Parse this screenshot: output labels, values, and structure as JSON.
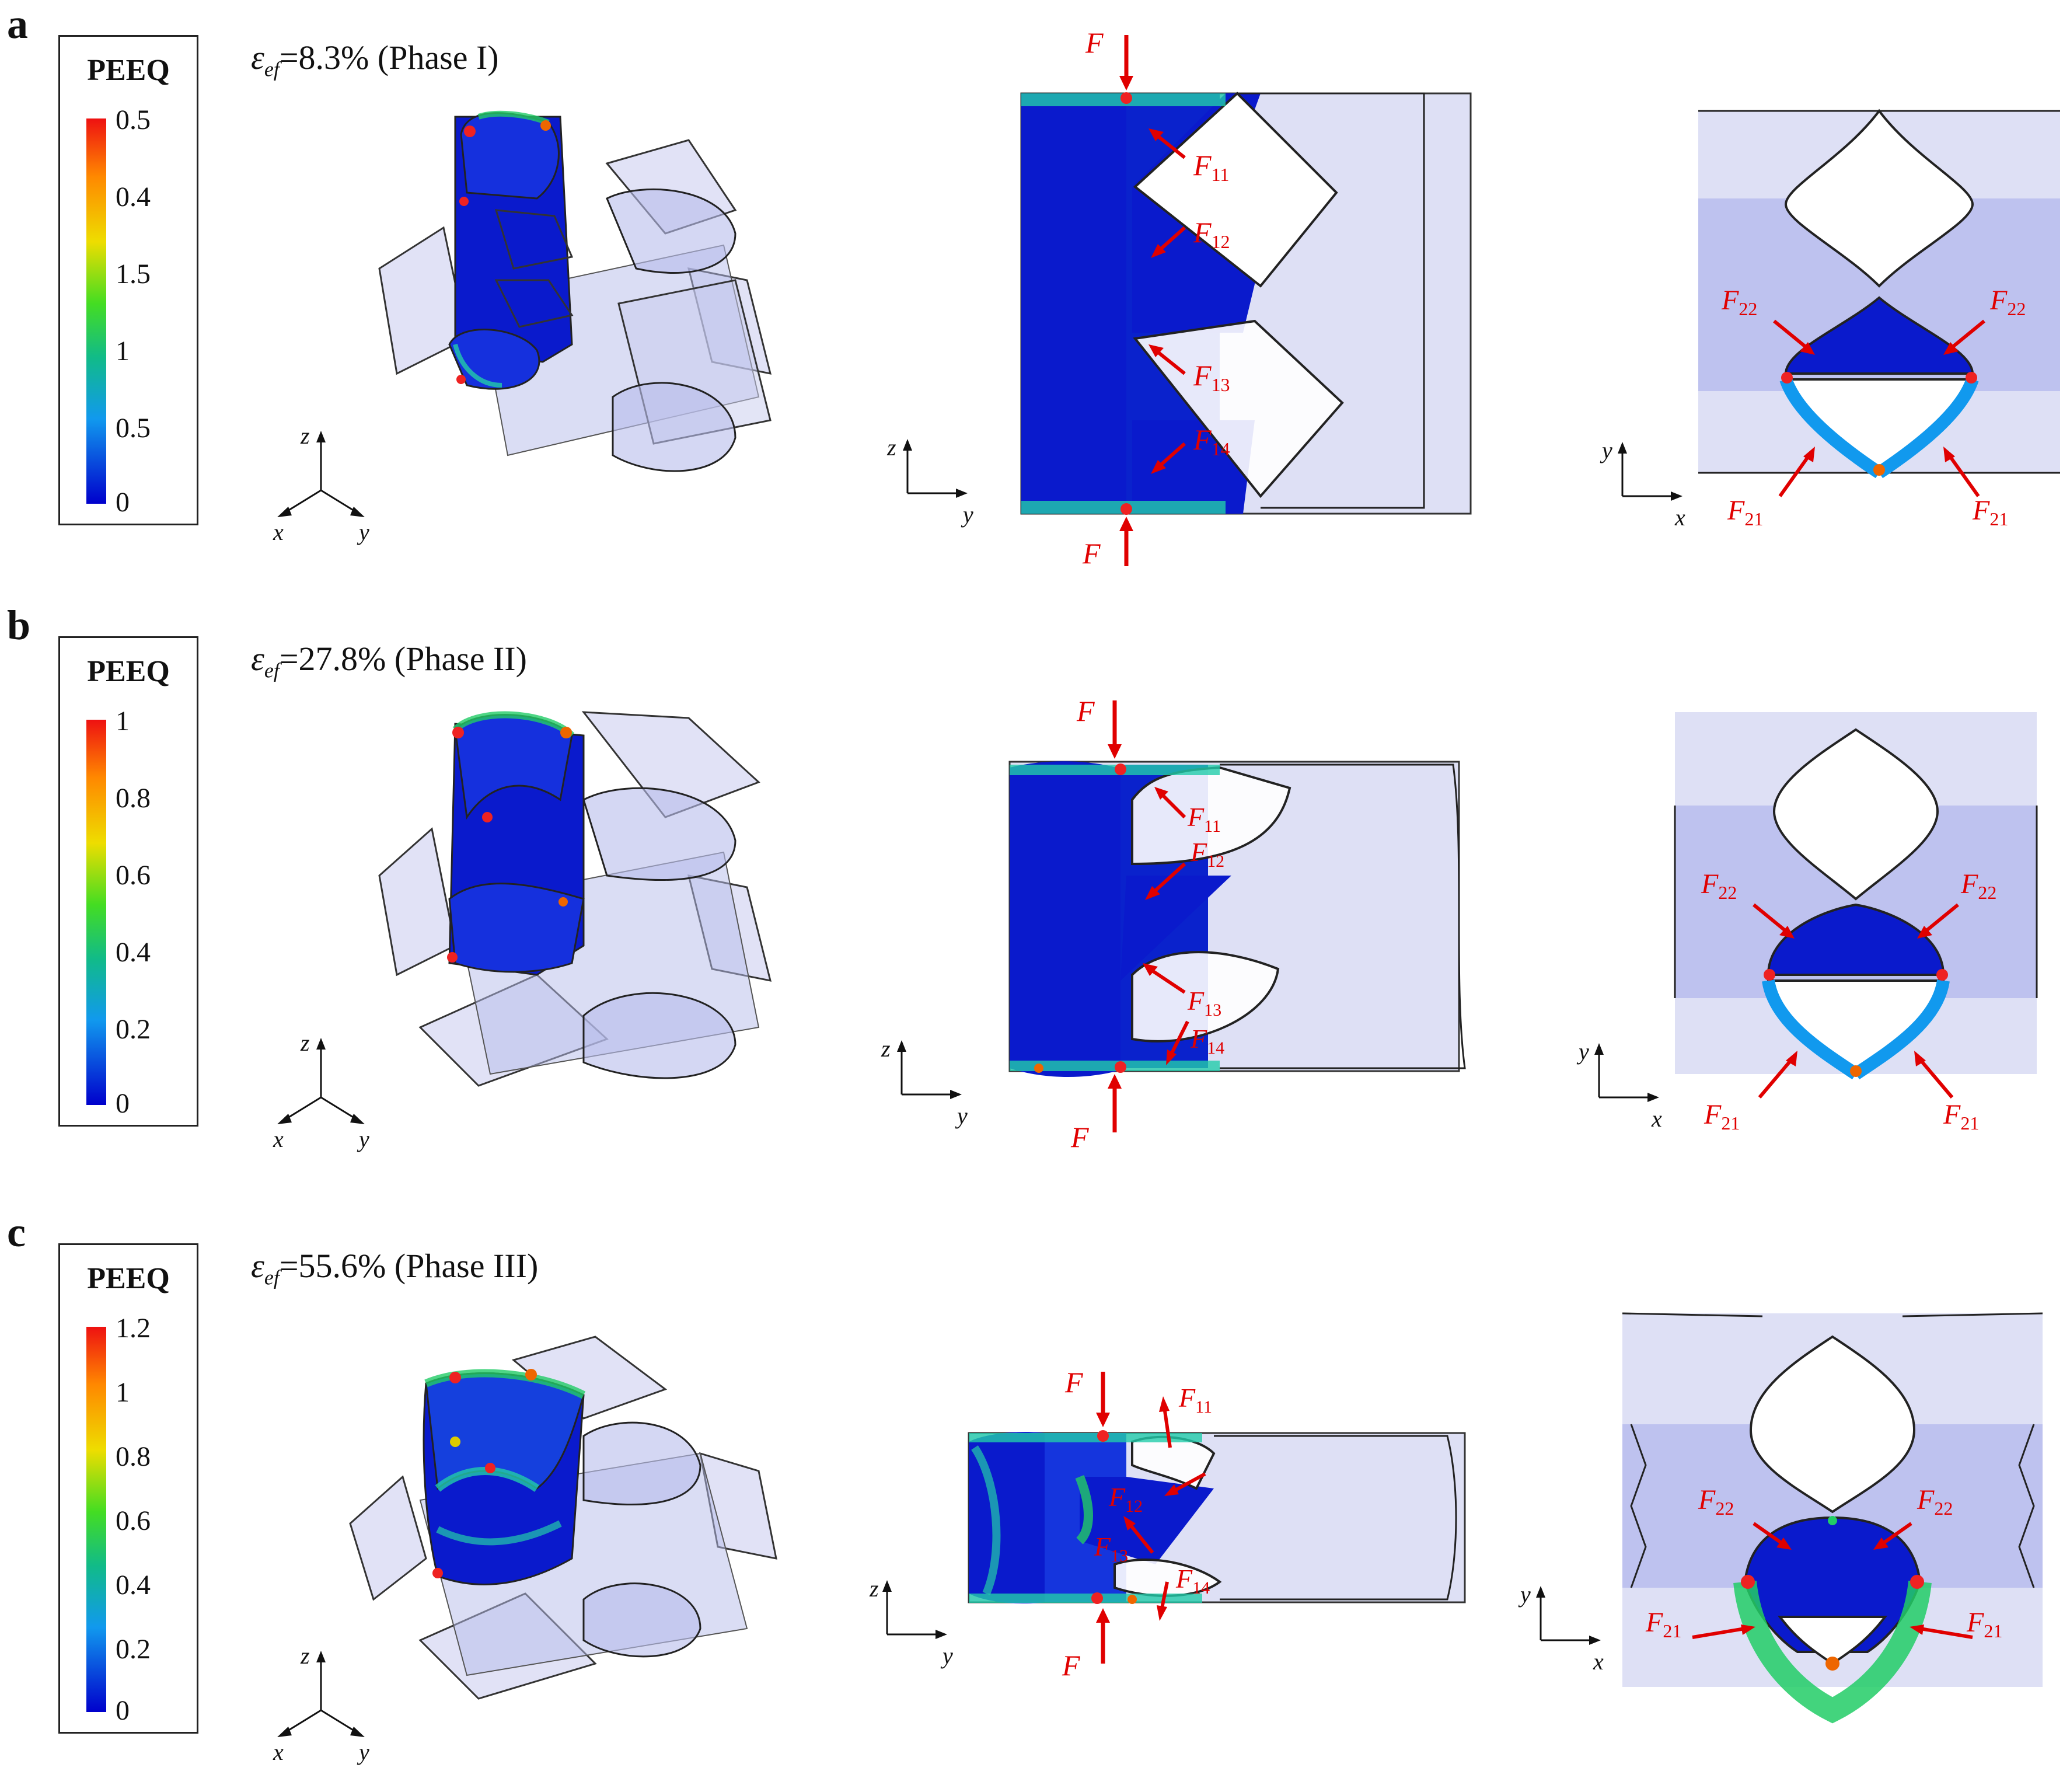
{
  "panels": [
    {
      "letter": "a",
      "legend_title": "PEEQ",
      "legend_ticks": [
        "0.5",
        "0.4",
        "1.5",
        "1",
        "0.5",
        "0"
      ],
      "strain_symbol": "ε",
      "strain_sub": "ef",
      "strain_text": "=8.3% (Phase I)"
    },
    {
      "letter": "b",
      "legend_title": "PEEQ",
      "legend_ticks": [
        "1",
        "0.8",
        "0.6",
        "0.4",
        "0.2",
        "0"
      ],
      "strain_symbol": "ε",
      "strain_sub": "ef",
      "strain_text": "=27.8% (Phase II)"
    },
    {
      "letter": "c",
      "legend_title": "PEEQ",
      "legend_ticks": [
        "1.2",
        "1",
        "0.8",
        "0.6",
        "0.4",
        "0.2",
        "0"
      ],
      "strain_symbol": "ε",
      "strain_sub": "ef",
      "strain_text": "=55.6% (Phase III)"
    }
  ],
  "axes": {
    "iso": {
      "z": "z",
      "x": "x",
      "y": "y"
    },
    "side": {
      "up": "z",
      "right": "y"
    },
    "top": {
      "up": "y",
      "right": "x"
    }
  },
  "forces": {
    "F": "F",
    "F11": {
      "base": "F",
      "sub": "11"
    },
    "F12": {
      "base": "F",
      "sub": "12"
    },
    "F13": {
      "base": "F",
      "sub": "13"
    },
    "F14": {
      "base": "F",
      "sub": "14"
    },
    "F21": {
      "base": "F",
      "sub": "21"
    },
    "F22": {
      "base": "F",
      "sub": "22"
    }
  },
  "colors": {
    "force": "#e00000",
    "mesh_fill": "#c8cbee",
    "deformed_blue": "#0a1acc",
    "outline": "#222222"
  }
}
